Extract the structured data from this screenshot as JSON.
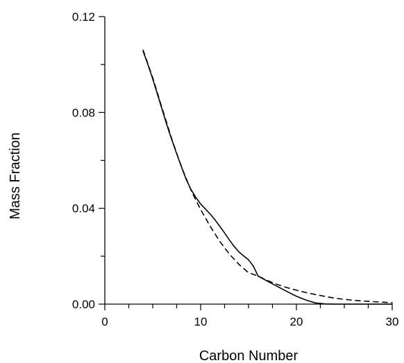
{
  "chart_data": {
    "type": "line",
    "xlabel": "Carbon Number",
    "ylabel": "Mass Fraction",
    "xlim": [
      0,
      30
    ],
    "ylim": [
      0,
      0.12
    ],
    "x_ticks": [
      0,
      10,
      20,
      30
    ],
    "x_tick_labels": [
      "0",
      "10",
      "20",
      "30"
    ],
    "y_ticks": [
      0,
      0.04,
      0.08,
      0.12
    ],
    "y_tick_labels": [
      "0.00",
      "0.04",
      "0.08",
      "0.12"
    ],
    "x_minor_step": 2.5,
    "y_minor_step": 0.02,
    "grid": false,
    "legend": "none",
    "series": [
      {
        "style": "solid",
        "color": "#000000",
        "x": [
          4,
          4.5,
          5,
          5.5,
          6,
          6.5,
          7,
          7.5,
          8,
          8.5,
          9,
          9.5,
          10,
          10.5,
          11,
          11.5,
          12,
          12.5,
          13,
          13.5,
          14,
          14.5,
          15,
          15.5,
          16,
          17,
          18,
          19,
          20,
          21,
          22,
          23,
          24,
          25,
          26,
          27,
          28,
          29,
          30
        ],
        "values": [
          0.1055,
          0.1,
          0.094,
          0.0875,
          0.081,
          0.0745,
          0.0685,
          0.0628,
          0.0573,
          0.052,
          0.0478,
          0.0446,
          0.0418,
          0.0397,
          0.0376,
          0.0352,
          0.0325,
          0.0297,
          0.0268,
          0.0241,
          0.0218,
          0.0201,
          0.0185,
          0.0159,
          0.0117,
          0.0095,
          0.0074,
          0.0053,
          0.0033,
          0.0017,
          0.0005,
          0.0001,
          0.0,
          0.0,
          0.0,
          0.0,
          0.0,
          0.0,
          0.0
        ]
      },
      {
        "style": "dashed",
        "color": "#000000",
        "x": [
          4,
          5,
          6,
          7,
          8,
          9,
          10,
          11,
          12,
          13,
          14,
          15,
          16,
          17,
          18,
          19,
          20,
          21,
          22,
          23,
          24,
          25,
          26,
          27,
          28,
          29,
          30
        ],
        "values": [
          0.106,
          0.0945,
          0.0815,
          0.0688,
          0.0573,
          0.0475,
          0.0395,
          0.0325,
          0.0262,
          0.0209,
          0.0166,
          0.0131,
          0.0117,
          0.0098,
          0.0082,
          0.0069,
          0.0058,
          0.0048,
          0.004,
          0.0032,
          0.0025,
          0.002,
          0.0016,
          0.0013,
          0.001,
          0.0008,
          0.0006
        ]
      }
    ]
  }
}
